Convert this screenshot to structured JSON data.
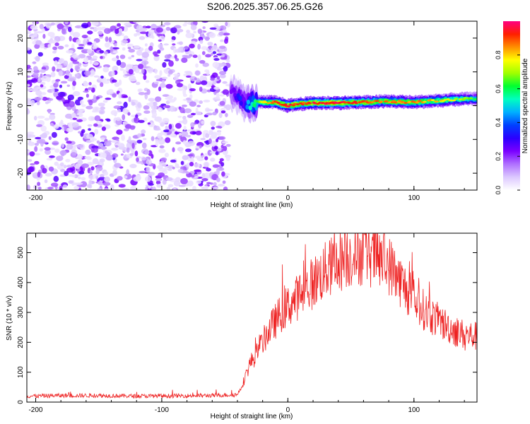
{
  "figure": {
    "title": "S206.2025.357.06.25.G26"
  },
  "chart_data": [
    {
      "type": "heatmap",
      "title": "",
      "xlabel": "Height of straight line (km)",
      "ylabel": "Frequency (Hz)",
      "xlim": [
        -207,
        150
      ],
      "ylim": [
        -25,
        25
      ],
      "xticks": [
        -200,
        -100,
        0,
        100
      ],
      "yticks": [
        -20,
        -10,
        0,
        10,
        20
      ],
      "xtick_labels": [
        "-200",
        "-100",
        "0",
        "100"
      ],
      "ytick_labels": [
        "-20",
        "-10",
        "0",
        "10",
        "20"
      ],
      "noise_region_x": [
        -207,
        -47
      ],
      "signal_ridge": {
        "x": [
          -45,
          -40,
          -35,
          -30,
          -25,
          -20,
          -10,
          0,
          10,
          20,
          40,
          60,
          80,
          100,
          120,
          140,
          150
        ],
        "freq": [
          4,
          3,
          1,
          0.5,
          1,
          1,
          1,
          0,
          0.5,
          0.8,
          0.8,
          1,
          1.3,
          1,
          1.5,
          2,
          2
        ],
        "amplitude": [
          0.25,
          0.3,
          0.35,
          0.5,
          0.6,
          0.75,
          0.9,
          0.95,
          0.9,
          0.95,
          0.95,
          0.9,
          0.85,
          0.85,
          0.8,
          0.7,
          0.6
        ]
      },
      "colorbar": {
        "label": "Normalized spectral amplitude",
        "range": [
          0,
          1
        ],
        "ticks": [
          0.0,
          0.2,
          0.4,
          0.6,
          0.8
        ],
        "tick_labels": [
          "0.0",
          "0.2",
          "0.4",
          "0.6",
          "0.8"
        ],
        "colors": [
          "#ffffff",
          "#dcc8ff",
          "#b070ff",
          "#7a00ff",
          "#2b00ff",
          "#0040ff",
          "#00b0ff",
          "#00ffc0",
          "#00ff30",
          "#a0ff00",
          "#ffff00",
          "#ff9000",
          "#ff2000",
          "#ff0080"
        ]
      }
    },
    {
      "type": "line",
      "title": "",
      "xlabel": "Height of straight line (km)",
      "ylabel": "SNR (10 * v/v)",
      "xlim": [
        -207,
        150
      ],
      "ylim": [
        0,
        565
      ],
      "xticks": [
        -200,
        -100,
        0,
        100
      ],
      "yticks": [
        0,
        100,
        200,
        300,
        400,
        500
      ],
      "xtick_labels": [
        "-200",
        "-100",
        "0",
        "100"
      ],
      "ytick_labels": [
        "0",
        "100",
        "200",
        "300",
        "400",
        "500"
      ],
      "line_color": "#ee2222",
      "series": [
        {
          "name": "SNR",
          "x": [
            -207,
            -180,
            -150,
            -120,
            -90,
            -60,
            -40,
            -35,
            -30,
            -25,
            -20,
            -15,
            -10,
            -5,
            0,
            10,
            20,
            30,
            40,
            50,
            60,
            70,
            80,
            90,
            100,
            110,
            120,
            130,
            140,
            150
          ],
          "values": [
            20,
            22,
            22,
            20,
            21,
            22,
            25,
            70,
            130,
            160,
            200,
            240,
            270,
            300,
            320,
            360,
            400,
            440,
            470,
            490,
            500,
            485,
            460,
            400,
            340,
            300,
            270,
            245,
            225,
            220
          ]
        }
      ]
    }
  ]
}
